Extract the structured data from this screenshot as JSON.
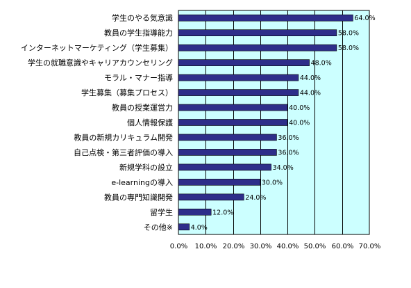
{
  "chart_data": {
    "type": "bar",
    "orientation": "horizontal",
    "categories": [
      "学生のやる気意識",
      "教員の学生指導能力",
      "インターネットマーケティング（学生募集）",
      "学生の就職意識やキャリアカウンセリング",
      "モラル・マナー指導",
      "学生募集（募集プロセス）",
      "教員の授業運営力",
      "個人情報保護",
      "教員の新規カリキュラム開発",
      "自己点検・第三者評価の導入",
      "新規学科の設立",
      "e-learningの導入",
      "教員の専門知識開発",
      "留学生",
      "その他※"
    ],
    "values": [
      64.0,
      58.0,
      58.0,
      48.0,
      44.0,
      44.0,
      40.0,
      40.0,
      36.0,
      36.0,
      34.0,
      30.0,
      24.0,
      12.0,
      4.0
    ],
    "value_labels": [
      "64.0%",
      "58.0%",
      "58.0%",
      "48.0%",
      "44.0%",
      "44.0%",
      "40.0%",
      "40.0%",
      "36.0%",
      "36.0%",
      "34.0%",
      "30.0%",
      "24.0%",
      "12.0%",
      "4.0%"
    ],
    "x_ticks": [
      0,
      10,
      20,
      30,
      40,
      50,
      60,
      70
    ],
    "x_tick_labels": [
      "0.0%",
      "10.0%",
      "20.0%",
      "30.0%",
      "40.0%",
      "50.0%",
      "60.0%",
      "70.0%"
    ],
    "xlim": [
      0,
      70
    ],
    "grid": "vertical",
    "title": "",
    "xlabel": "",
    "ylabel": "",
    "colors": {
      "bar": "#2e2e8a",
      "plot_background": "#ccffff",
      "grid": "#000000"
    }
  }
}
